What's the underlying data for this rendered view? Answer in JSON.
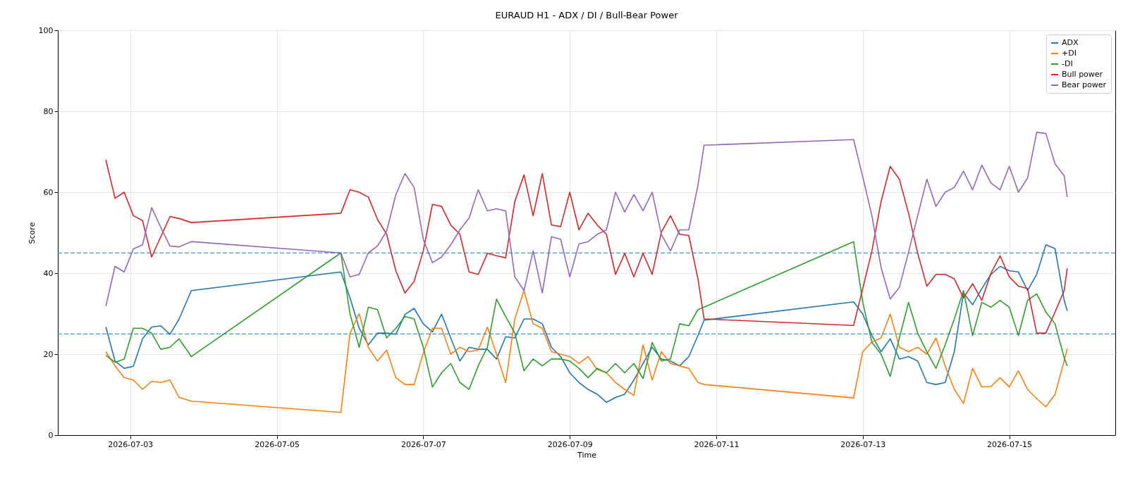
{
  "chart_data": {
    "type": "line",
    "title": "EURAUD H1 - ADX / DI / Bull-Bear Power",
    "xlabel": "Time",
    "ylabel": "Score",
    "x": [
      "2026-07-02T16:00",
      "2026-07-02T19:00",
      "2026-07-02T22:00",
      "2026-07-03T01:00",
      "2026-07-03T04:00",
      "2026-07-03T07:00",
      "2026-07-03T10:00",
      "2026-07-03T13:00",
      "2026-07-03T16:00",
      "2026-07-03T20:00",
      "2026-07-05T21:00",
      "2026-07-06T00:00",
      "2026-07-06T03:00",
      "2026-07-06T06:00",
      "2026-07-06T09:00",
      "2026-07-06T12:00",
      "2026-07-06T15:00",
      "2026-07-06T18:00",
      "2026-07-06T21:00",
      "2026-07-07T00:00",
      "2026-07-07T03:00",
      "2026-07-07T06:00",
      "2026-07-07T09:00",
      "2026-07-07T12:00",
      "2026-07-07T15:00",
      "2026-07-07T18:00",
      "2026-07-07T21:00",
      "2026-07-08T00:00",
      "2026-07-08T03:00",
      "2026-07-08T06:00",
      "2026-07-08T09:00",
      "2026-07-08T12:00",
      "2026-07-08T15:00",
      "2026-07-08T18:00",
      "2026-07-08T21:00",
      "2026-07-09T00:00",
      "2026-07-09T03:00",
      "2026-07-09T06:00",
      "2026-07-09T09:00",
      "2026-07-09T12:00",
      "2026-07-09T15:00",
      "2026-07-09T18:00",
      "2026-07-09T21:00",
      "2026-07-10T00:00",
      "2026-07-10T03:00",
      "2026-07-10T06:00",
      "2026-07-10T09:00",
      "2026-07-10T12:00",
      "2026-07-10T15:00",
      "2026-07-10T18:00",
      "2026-07-10T20:00",
      "2026-07-12T21:00",
      "2026-07-13T00:00",
      "2026-07-13T03:00",
      "2026-07-13T06:00",
      "2026-07-13T09:00",
      "2026-07-13T12:00",
      "2026-07-13T15:00",
      "2026-07-13T18:00",
      "2026-07-13T21:00",
      "2026-07-14T00:00",
      "2026-07-14T03:00",
      "2026-07-14T06:00",
      "2026-07-14T09:00",
      "2026-07-14T12:00",
      "2026-07-14T15:00",
      "2026-07-14T18:00",
      "2026-07-14T21:00",
      "2026-07-15T00:00",
      "2026-07-15T03:00",
      "2026-07-15T06:00",
      "2026-07-15T09:00",
      "2026-07-15T12:00",
      "2026-07-15T15:00",
      "2026-07-15T18:00",
      "2026-07-15T19:00"
    ],
    "series": [
      {
        "name": "ADX",
        "color": "#1f77b4",
        "values": [
          26.7,
          18.3,
          16.5,
          17,
          23.8,
          26.7,
          27,
          24.9,
          28.7,
          35.7,
          40.3,
          33.9,
          26.4,
          22.3,
          25.2,
          25.2,
          24.9,
          29.8,
          31.3,
          27.5,
          25.5,
          29.9,
          24,
          18.3,
          21.7,
          21.2,
          21.2,
          18.8,
          24.3,
          24,
          28.7,
          28.7,
          27.5,
          21.7,
          19.4,
          15.4,
          13,
          11.3,
          10.1,
          8.1,
          9.3,
          10.1,
          13.6,
          17.7,
          21.7,
          18.8,
          18.3,
          17.1,
          19.4,
          24.6,
          28.4,
          32.9,
          29.9,
          24.6,
          20.6,
          23.8,
          18.8,
          19.4,
          18.3,
          13,
          12.5,
          13,
          20.6,
          35.1,
          32.2,
          36.2,
          39.7,
          41.7,
          40.6,
          40.3,
          35.7,
          39.7,
          47,
          46.1,
          33.3,
          30.7
        ]
      },
      {
        "name": "+DI",
        "color": "#ff7f0e",
        "values": [
          20.6,
          17.1,
          14.2,
          13.6,
          11.3,
          13.3,
          13,
          13.6,
          9.3,
          8.4,
          5.6,
          25.2,
          30,
          21.7,
          18.3,
          21,
          14.2,
          12.5,
          12.5,
          20.3,
          26.4,
          26.4,
          20,
          21.7,
          20.6,
          21,
          26.7,
          20,
          13,
          28.7,
          35.7,
          27.5,
          26.4,
          20.6,
          20,
          19.4,
          17.7,
          19.4,
          16.2,
          15.4,
          13,
          11.3,
          9.8,
          22.3,
          13.6,
          20.6,
          17.7,
          17.1,
          16.5,
          13,
          12.5,
          9.2,
          20.6,
          23,
          24,
          29.9,
          21.7,
          20.6,
          21.7,
          20,
          24,
          17.1,
          11.3,
          7.8,
          16.5,
          11.9,
          12,
          14.2,
          11.9,
          15.9,
          11.3,
          9,
          7,
          10.1,
          18.3,
          21.4
        ]
      },
      {
        "name": "-DI",
        "color": "#2ca02c",
        "values": [
          19.7,
          18,
          18.8,
          26.4,
          26.4,
          25.2,
          21.2,
          21.7,
          23.8,
          19.4,
          45,
          29.9,
          21.7,
          31.6,
          31,
          24,
          26.4,
          29.3,
          28.7,
          21.7,
          11.9,
          15.4,
          17.7,
          13,
          11.3,
          17.1,
          21.7,
          33.6,
          29.3,
          25.2,
          15.9,
          18.8,
          17.1,
          18.8,
          18.8,
          18.3,
          16.5,
          14.2,
          16.5,
          15.4,
          17.7,
          15.4,
          17.7,
          14,
          22.9,
          18.3,
          18.8,
          27.5,
          27,
          31,
          31.6,
          47.8,
          32.8,
          22.9,
          20,
          14.5,
          24,
          32.8,
          25.2,
          20.6,
          16.5,
          22.3,
          28.7,
          35.7,
          24.6,
          32.8,
          31.6,
          33.3,
          31.6,
          24.6,
          33.3,
          34.9,
          30.4,
          27.5,
          19.1,
          17.1
        ]
      },
      {
        "name": "Bull power",
        "color": "#d62728",
        "values": [
          68,
          58.5,
          60,
          54.2,
          53,
          44,
          49,
          54,
          53.5,
          52.5,
          54.8,
          60.6,
          60,
          58.8,
          53.3,
          49.6,
          40.6,
          35.1,
          38,
          45.5,
          57,
          56.5,
          51.9,
          49.6,
          40.3,
          39.7,
          44.9,
          44.3,
          43.8,
          57.7,
          64.3,
          54.2,
          64.6,
          51.9,
          51.5,
          60,
          50.7,
          54.8,
          51.9,
          49.6,
          39.7,
          44.9,
          39.1,
          44.9,
          39.7,
          50.1,
          54.2,
          49.6,
          49.3,
          38.6,
          28.7,
          27.1,
          36.2,
          45.5,
          57.7,
          66.4,
          63.2,
          54.8,
          44.9,
          36.8,
          39.7,
          39.7,
          38.6,
          33.9,
          37.4,
          33.3,
          40,
          44.3,
          39.1,
          36.8,
          36.2,
          25.2,
          25.2,
          30.4,
          35.7,
          41.2
        ]
      },
      {
        "name": "Bear power",
        "color": "#9467bd",
        "values": [
          31.9,
          41.7,
          40.3,
          46,
          47,
          56.2,
          51.3,
          46.7,
          46.5,
          47.8,
          45,
          39.1,
          39.7,
          45,
          46.7,
          50.4,
          59.4,
          64.6,
          61.2,
          48.4,
          42.6,
          44,
          47,
          50.7,
          53.6,
          60.6,
          55.4,
          55.9,
          55.4,
          39.1,
          35.7,
          45.5,
          35.1,
          49,
          48.4,
          39.1,
          47.2,
          47.8,
          49.6,
          50.7,
          60,
          55.1,
          59.4,
          55.4,
          60,
          49.6,
          45.5,
          50.7,
          50.7,
          61.7,
          71.6,
          73,
          63.8,
          54.2,
          41.4,
          33.6,
          36.5,
          45.2,
          54.2,
          63.2,
          56.5,
          60,
          61.2,
          65.2,
          60.6,
          66.7,
          62.3,
          60.6,
          66.4,
          60,
          63.5,
          74.8,
          74.5,
          67,
          64.1,
          58.8
        ]
      }
    ],
    "xlim": [
      "2026-07-02T00:15",
      "2026-07-16T10:45"
    ],
    "xticks": [
      "2026-07-03",
      "2026-07-05",
      "2026-07-07",
      "2026-07-09",
      "2026-07-11",
      "2026-07-13",
      "2026-07-15"
    ],
    "ylim": [
      0,
      100
    ],
    "yticks": [
      0,
      20,
      40,
      60,
      80,
      100
    ],
    "ref_lines": [
      {
        "axis": "y",
        "value": 45,
        "color": "#1f77b4",
        "line_style": "dashed"
      },
      {
        "axis": "y",
        "value": 25,
        "color": "#1f77b4",
        "line_style": "dashed"
      }
    ],
    "grid": true,
    "legend": "top right",
    "line_style": "solid"
  }
}
